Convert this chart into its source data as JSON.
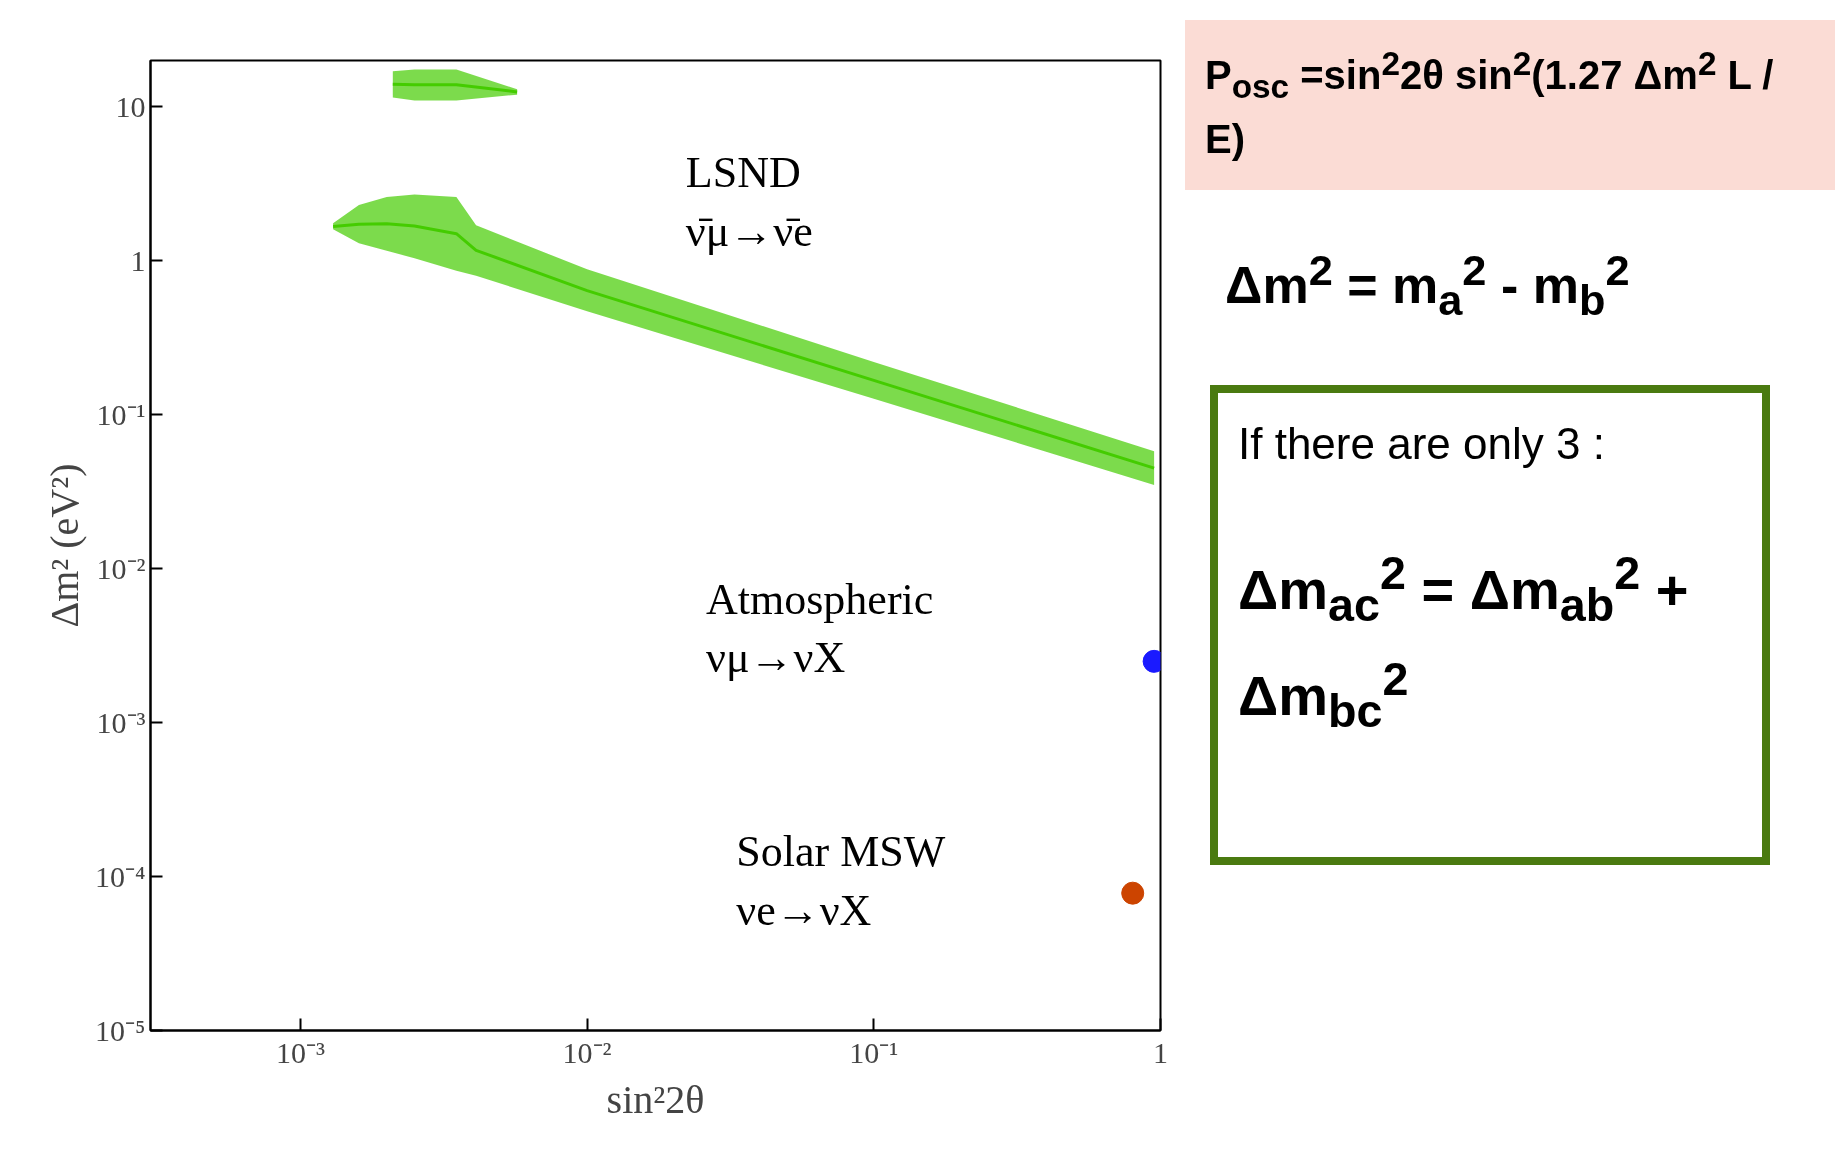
{
  "chart_data": {
    "type": "line",
    "log": "xy",
    "grid": false,
    "xlabel": "sin²2θ",
    "ylabel": "Δm² (eV²)",
    "xlim": [
      0.0003,
      1
    ],
    "ylim": [
      1e-05,
      20
    ],
    "xticks": [
      {
        "value": 0.001,
        "label": "10⁻³"
      },
      {
        "value": 0.01,
        "label": "10⁻²"
      },
      {
        "value": 0.1,
        "label": "10⁻¹"
      },
      1
    ],
    "yticks": [
      {
        "value": 1e-05,
        "label": "10⁻⁵"
      },
      {
        "value": 0.0001,
        "label": "10⁻⁴"
      },
      {
        "value": 0.001,
        "label": "10⁻³"
      },
      {
        "value": 0.01,
        "label": "10⁻²"
      },
      {
        "value": 0.1,
        "label": "10⁻¹"
      },
      1,
      10
    ],
    "series": [
      {
        "color": "#44cc00",
        "x": [
          0.0013,
          0.0016,
          0.002,
          0.0025,
          0.0035,
          0.0041,
          0.01,
          0.1,
          0.95
        ],
        "values": [
          1.67,
          1.73,
          1.74,
          1.68,
          1.5,
          1.17,
          0.64,
          0.167,
          0.045
        ],
        "upper": [
          1.75,
          2.3,
          2.6,
          2.7,
          2.6,
          1.7,
          0.88,
          0.22,
          0.058
        ],
        "lower": [
          1.6,
          1.3,
          1.16,
          1.04,
          0.86,
          0.8,
          0.47,
          0.127,
          0.035
        ]
      },
      {
        "color": "#44cc00",
        "x": [
          0.0021,
          0.0025,
          0.0035,
          0.0057
        ],
        "values": [
          14,
          13.9,
          13.9,
          12.5
        ],
        "upper": [
          17,
          17.5,
          17.5,
          13
        ],
        "lower": [
          11.5,
          11,
          11,
          12
        ]
      },
      {
        "type": "scatter",
        "marker": "circle",
        "color": "#1a1aff",
        "x": [
          0.95
        ],
        "values": [
          0.0025
        ]
      },
      {
        "type": "scatter",
        "marker": "circle",
        "color": "#cc4400",
        "x": [
          0.8
        ],
        "values": [
          7.8e-05
        ]
      }
    ],
    "annotations": [
      "LSND\nν̄μ→ν̄e",
      "Atmospheric\nνμ→νX",
      "Solar MSW\nνe→νX",
      "P$_{osc}$ =sin$^{2}$2θ sin$^{2}$(1.27 Δm$^{2}$ L / E)",
      "Δm$^{2}$ = m$_{a}$$^{2}$ - m$_{b}$$^{2}$",
      "If there are only 3 :",
      "Δm$_{ac}$$^{2}$ = Δm$_{ab}$$^{2}$ + Δm$_{bc}$$^{2}$"
    ]
  }
}
